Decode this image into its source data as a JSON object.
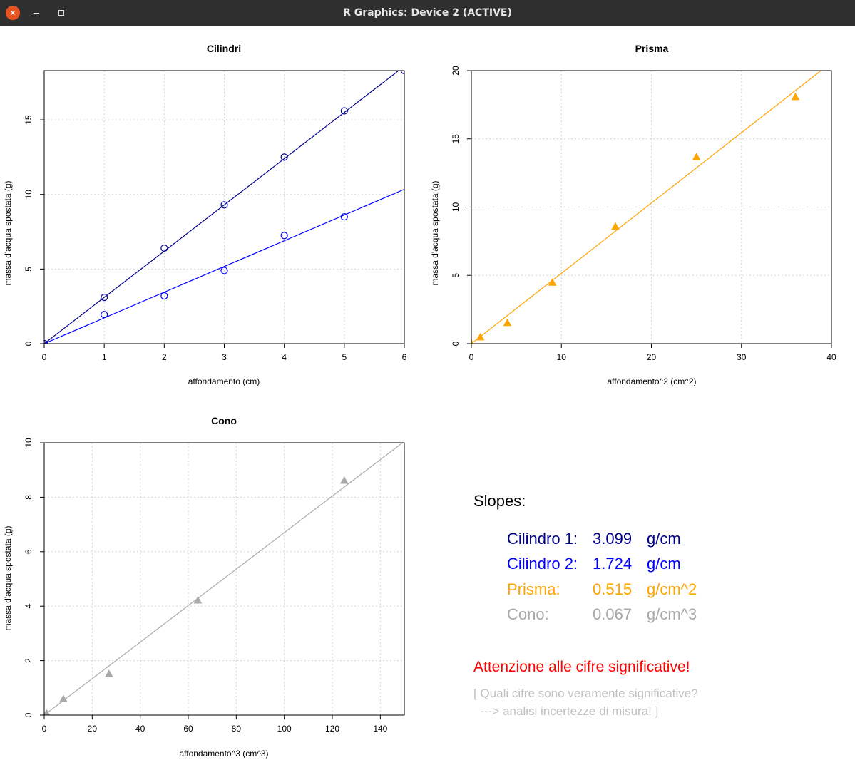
{
  "window": {
    "title": "R Graphics: Device 2 (ACTIVE)",
    "close_glyph": "×",
    "minimize_label": "",
    "maximize_label": ""
  },
  "chart_data": [
    {
      "id": "cilindri",
      "type": "scatter",
      "title": "Cilindri",
      "xlabel": "affondamento (cm)",
      "ylabel": "massa d'acqua spostata (g)",
      "xlim": [
        0,
        6
      ],
      "ylim": [
        0,
        18.3
      ],
      "xticks": [
        0,
        1,
        2,
        3,
        4,
        5,
        6
      ],
      "yticks": [
        0,
        5,
        10,
        15
      ],
      "grid": true,
      "series": [
        {
          "color": "#00008b",
          "marker": "circle",
          "x": [
            0,
            1,
            2,
            3,
            4,
            5,
            6
          ],
          "y": [
            0,
            3.1,
            6.4,
            9.3,
            12.5,
            15.6,
            18.3
          ],
          "fit": {
            "intercept": 0,
            "slope": 3.099
          }
        },
        {
          "color": "#0000ff",
          "marker": "circle",
          "x": [
            0,
            1,
            2,
            3,
            4,
            5
          ],
          "y": [
            0,
            1.95,
            3.2,
            4.9,
            7.25,
            8.5
          ],
          "fit": {
            "intercept": 0,
            "slope": 1.724
          }
        }
      ]
    },
    {
      "id": "prisma",
      "type": "scatter",
      "title": "Prisma",
      "xlabel": "affondamento^2 (cm^2)",
      "ylabel": "massa d'acqua spostata (g)",
      "xlim": [
        0,
        40
      ],
      "ylim": [
        0,
        20
      ],
      "xticks": [
        0,
        10,
        20,
        30,
        40
      ],
      "yticks": [
        0,
        5,
        10,
        15,
        20
      ],
      "grid": true,
      "series": [
        {
          "color": "#ffa500",
          "marker": "triangle",
          "x": [
            0,
            1,
            4,
            9,
            16,
            25,
            36
          ],
          "y": [
            0,
            0.45,
            1.5,
            4.45,
            8.55,
            13.65,
            18.05
          ],
          "fit": {
            "intercept": 0,
            "slope": 0.515
          }
        }
      ]
    },
    {
      "id": "cono",
      "type": "scatter",
      "title": "Cono",
      "xlabel": "affondamento^3  (cm^3)",
      "ylabel": "massa d'acqua spostata (g)",
      "xlim": [
        0,
        150
      ],
      "ylim": [
        0,
        10
      ],
      "xticks": [
        0,
        20,
        40,
        60,
        80,
        100,
        120,
        140
      ],
      "yticks": [
        0,
        2,
        4,
        6,
        8,
        10
      ],
      "grid": true,
      "series": [
        {
          "color": "#a9a9a9",
          "marker": "triangle",
          "x": [
            1,
            8,
            27,
            64,
            125
          ],
          "y": [
            0.05,
            0.58,
            1.5,
            4.2,
            8.6
          ],
          "fit": {
            "intercept": 0,
            "slope": 0.067
          }
        }
      ]
    }
  ],
  "slopes_panel": {
    "heading": "Slopes:",
    "rows": [
      {
        "name": "Cilindro 1:",
        "value": "3.099",
        "unit": "g/cm",
        "color": "#00008b"
      },
      {
        "name": "Cilindro 2:",
        "value": "1.724",
        "unit": "g/cm",
        "color": "#0000ff"
      },
      {
        "name": "Prisma:",
        "value": "0.515",
        "unit": "g/cm^2",
        "color": "#ffa500"
      },
      {
        "name": "Cono:",
        "value": "0.067",
        "unit": "g/cm^3",
        "color": "#a9a9a9"
      }
    ],
    "warning": "Attenzione alle cifre significative!",
    "warning_color": "#ff0000",
    "note_line1": "[ Quali cifre sono veramente significative?",
    "note_line2": "  ---> analisi incertezze di misura! ]",
    "note_color": "#c0c0c0"
  }
}
